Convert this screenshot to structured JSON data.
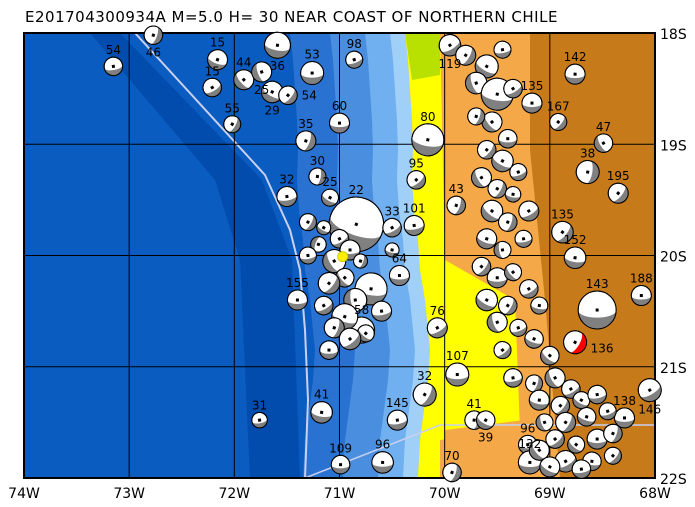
{
  "title": "E201704300934A M=5.0 H= 30 NEAR COAST OF NORTHERN CHILE",
  "map": {
    "lon_range": [
      -74,
      -68
    ],
    "lat_range": [
      -22,
      -18
    ],
    "lon_ticks": [
      "74W",
      "73W",
      "72W",
      "71W",
      "70W",
      "69W",
      "68W"
    ],
    "lat_ticks": [
      "18S",
      "19S",
      "20S",
      "21S",
      "22S"
    ],
    "colors": {
      "ocean_deep": "#0a5cc0",
      "ocean_trench": "#0048a8",
      "shelf": "#a0d0f8",
      "land": "#f5a848",
      "land_high": "#c77a1a",
      "coastal_yellow": "#ffff00",
      "mechanism_fill": "#808080",
      "main_event": "#ff0000",
      "epicenter": "#ffee00",
      "plate_boundary": "#c8d0f0"
    },
    "epicenter": {
      "lon": -70.97,
      "lat": -20.01
    }
  },
  "main_event": {
    "lon": -68.76,
    "lat": -20.78,
    "mag": 5.6,
    "strike": 30,
    "label": "136"
  },
  "events": [
    [
      -73.15,
      -18.3,
      5.3,
      80,
      "54"
    ],
    [
      -72.77,
      -18.02,
      5.3,
      20,
      "46"
    ],
    [
      -72.16,
      -18.24,
      5.4,
      110,
      "15"
    ],
    [
      -71.59,
      -18.11,
      5.8,
      100,
      "36"
    ],
    [
      -71.26,
      -18.36,
      5.6,
      90,
      "53"
    ],
    [
      -70.86,
      -18.24,
      5.2,
      70,
      "98"
    ],
    [
      -71.91,
      -18.42,
      5.4,
      140,
      "44"
    ],
    [
      -72.21,
      -18.49,
      5.3,
      60,
      "15"
    ],
    [
      -71.74,
      -18.35,
      5.4,
      160,
      "25"
    ],
    [
      -71.64,
      -18.53,
      5.5,
      120,
      "29"
    ],
    [
      -71.49,
      -18.56,
      5.3,
      40,
      "54"
    ],
    [
      -72.02,
      -18.82,
      5.2,
      30,
      "55"
    ],
    [
      -71.0,
      -18.81,
      5.4,
      90,
      "60"
    ],
    [
      -71.32,
      -18.97,
      5.4,
      20,
      "35"
    ],
    [
      -71.21,
      -19.29,
      5.2,
      10,
      "30"
    ],
    [
      -71.5,
      -19.47,
      5.4,
      80,
      "32"
    ],
    [
      -71.09,
      -19.48,
      5.2,
      120,
      "25"
    ],
    [
      -70.84,
      -19.72,
      7.7,
      110,
      "22"
    ],
    [
      -70.5,
      -19.75,
      5.3,
      60,
      "33"
    ],
    [
      -70.29,
      -19.73,
      5.4,
      80,
      "101"
    ],
    [
      -70.27,
      -19.32,
      5.3,
      50,
      "95"
    ],
    [
      -70.16,
      -18.96,
      6.2,
      100,
      "80"
    ],
    [
      -69.89,
      -19.55,
      5.3,
      20,
      "43"
    ],
    [
      -70.43,
      -20.18,
      5.4,
      90,
      "64"
    ],
    [
      -71.4,
      -20.4,
      5.4,
      90,
      "155"
    ],
    [
      -70.79,
      -20.67,
      5.8,
      120,
      "58"
    ],
    [
      -71.76,
      -21.48,
      5.1,
      80,
      "31"
    ],
    [
      -71.17,
      -21.41,
      5.5,
      100,
      "41"
    ],
    [
      -70.99,
      -21.88,
      5.3,
      90,
      "109"
    ],
    [
      -70.59,
      -21.86,
      5.5,
      90,
      "96"
    ],
    [
      -70.45,
      -21.48,
      5.4,
      80,
      "145"
    ],
    [
      -70.19,
      -21.25,
      5.6,
      30,
      "32"
    ],
    [
      -70.07,
      -20.65,
      5.4,
      60,
      "76"
    ],
    [
      -69.88,
      -21.07,
      5.6,
      90,
      "107"
    ],
    [
      -69.93,
      -21.95,
      5.3,
      20,
      "70"
    ],
    [
      -69.72,
      -21.48,
      5.3,
      10,
      "41"
    ],
    [
      -69.61,
      -21.48,
      5.3,
      120,
      "39"
    ],
    [
      -69.21,
      -21.7,
      5.3,
      90,
      "96"
    ],
    [
      -69.19,
      -21.86,
      5.6,
      90,
      "132"
    ],
    [
      -69.95,
      -18.11,
      5.5,
      60,
      "119"
    ],
    [
      -68.76,
      -18.37,
      5.4,
      90,
      "142"
    ],
    [
      -69.17,
      -18.63,
      5.4,
      90,
      "135"
    ],
    [
      -68.92,
      -18.8,
      5.2,
      40,
      "167"
    ],
    [
      -68.49,
      -18.99,
      5.3,
      150,
      "47"
    ],
    [
      -68.64,
      -19.25,
      5.6,
      10,
      "38"
    ],
    [
      -68.35,
      -19.44,
      5.4,
      40,
      "195"
    ],
    [
      -68.88,
      -19.79,
      5.5,
      40,
      "135"
    ],
    [
      -68.76,
      -20.02,
      5.5,
      100,
      "152"
    ],
    [
      -68.55,
      -20.49,
      6.6,
      90,
      "143"
    ],
    [
      -68.13,
      -20.36,
      5.4,
      90,
      "188"
    ],
    [
      -68.05,
      -21.21,
      5.6,
      60,
      "146"
    ],
    [
      -68.29,
      -21.46,
      5.4,
      90,
      "138"
    ],
    [
      -71.3,
      -19.7,
      5.2,
      30,
      ""
    ],
    [
      -71.15,
      -19.75,
      5.0,
      120,
      ""
    ],
    [
      -71.0,
      -19.85,
      5.3,
      60,
      ""
    ],
    [
      -71.2,
      -19.9,
      5.1,
      200,
      ""
    ],
    [
      -70.9,
      -19.95,
      5.4,
      90,
      ""
    ],
    [
      -71.05,
      -20.05,
      5.6,
      150,
      ""
    ],
    [
      -70.8,
      -20.05,
      5.0,
      20,
      ""
    ],
    [
      -71.3,
      -20.0,
      5.2,
      80,
      ""
    ],
    [
      -70.95,
      -20.2,
      5.3,
      140,
      ""
    ],
    [
      -71.1,
      -20.25,
      5.5,
      40,
      ""
    ],
    [
      -70.7,
      -20.3,
      6.2,
      100,
      ""
    ],
    [
      -70.85,
      -20.4,
      5.6,
      170,
      ""
    ],
    [
      -71.15,
      -20.45,
      5.3,
      60,
      ""
    ],
    [
      -70.95,
      -20.55,
      5.8,
      110,
      ""
    ],
    [
      -71.05,
      -20.65,
      5.4,
      20,
      ""
    ],
    [
      -70.75,
      -20.7,
      5.2,
      130,
      ""
    ],
    [
      -71.1,
      -20.85,
      5.3,
      90,
      ""
    ],
    [
      -70.9,
      -20.75,
      5.5,
      50,
      ""
    ],
    [
      -70.6,
      -20.5,
      5.4,
      80,
      ""
    ],
    [
      -70.5,
      -19.95,
      5.0,
      100,
      ""
    ],
    [
      -69.8,
      -18.2,
      5.4,
      30,
      ""
    ],
    [
      -69.6,
      -18.3,
      5.6,
      120,
      ""
    ],
    [
      -69.45,
      -18.15,
      5.2,
      80,
      ""
    ],
    [
      -69.7,
      -18.45,
      5.5,
      160,
      ""
    ],
    [
      -69.5,
      -18.55,
      6.2,
      100,
      ""
    ],
    [
      -69.35,
      -18.5,
      5.3,
      60,
      ""
    ],
    [
      -69.55,
      -18.8,
      5.4,
      140,
      ""
    ],
    [
      -69.7,
      -18.75,
      5.2,
      20,
      ""
    ],
    [
      -69.4,
      -18.95,
      5.3,
      90,
      ""
    ],
    [
      -69.6,
      -19.05,
      5.3,
      40,
      ""
    ],
    [
      -69.45,
      -19.15,
      5.5,
      120,
      ""
    ],
    [
      -69.3,
      -19.25,
      5.2,
      70,
      ""
    ],
    [
      -69.65,
      -19.3,
      5.4,
      150,
      ""
    ],
    [
      -69.5,
      -19.4,
      5.3,
      30,
      ""
    ],
    [
      -69.35,
      -19.45,
      5.1,
      100,
      ""
    ],
    [
      -69.2,
      -19.6,
      5.4,
      60,
      ""
    ],
    [
      -69.55,
      -19.6,
      5.5,
      130,
      ""
    ],
    [
      -69.4,
      -19.7,
      5.3,
      20,
      ""
    ],
    [
      -69.25,
      -19.85,
      5.2,
      80,
      ""
    ],
    [
      -69.6,
      -19.85,
      5.4,
      110,
      ""
    ],
    [
      -69.45,
      -19.95,
      5.2,
      170,
      ""
    ],
    [
      -69.65,
      -20.1,
      5.3,
      40,
      ""
    ],
    [
      -69.5,
      -20.2,
      5.4,
      90,
      ""
    ],
    [
      -69.35,
      -20.15,
      5.2,
      140,
      ""
    ],
    [
      -69.2,
      -20.3,
      5.3,
      60,
      ""
    ],
    [
      -69.6,
      -20.4,
      5.5,
      120,
      ""
    ],
    [
      -69.4,
      -20.45,
      5.3,
      30,
      ""
    ],
    [
      -69.1,
      -20.45,
      5.2,
      100,
      ""
    ],
    [
      -69.5,
      -20.6,
      5.4,
      160,
      ""
    ],
    [
      -69.3,
      -20.65,
      5.2,
      70,
      ""
    ],
    [
      -69.15,
      -20.75,
      5.3,
      110,
      ""
    ],
    [
      -69.45,
      -20.85,
      5.2,
      50,
      ""
    ],
    [
      -69.0,
      -20.9,
      5.3,
      130,
      ""
    ],
    [
      -69.35,
      -21.1,
      5.3,
      80,
      ""
    ],
    [
      -69.15,
      -21.15,
      5.2,
      20,
      ""
    ],
    [
      -68.95,
      -21.1,
      5.4,
      150,
      ""
    ],
    [
      -68.8,
      -21.2,
      5.3,
      60,
      ""
    ],
    [
      -69.1,
      -21.3,
      5.4,
      100,
      ""
    ],
    [
      -68.9,
      -21.35,
      5.3,
      40,
      ""
    ],
    [
      -68.7,
      -21.3,
      5.2,
      120,
      ""
    ],
    [
      -68.55,
      -21.25,
      5.3,
      80,
      ""
    ],
    [
      -69.05,
      -21.5,
      5.2,
      160,
      ""
    ],
    [
      -68.85,
      -21.5,
      5.4,
      30,
      ""
    ],
    [
      -68.65,
      -21.45,
      5.3,
      110,
      ""
    ],
    [
      -68.45,
      -21.4,
      5.2,
      70,
      ""
    ],
    [
      -68.95,
      -21.65,
      5.3,
      50,
      ""
    ],
    [
      -68.75,
      -21.7,
      5.2,
      130,
      ""
    ],
    [
      -68.55,
      -21.65,
      5.4,
      90,
      ""
    ],
    [
      -68.4,
      -21.6,
      5.3,
      20,
      ""
    ],
    [
      -69.1,
      -21.75,
      5.4,
      140,
      ""
    ],
    [
      -68.85,
      -21.85,
      5.5,
      60,
      ""
    ],
    [
      -68.6,
      -21.85,
      5.3,
      100,
      ""
    ],
    [
      -68.4,
      -21.8,
      5.2,
      40,
      ""
    ],
    [
      -69.0,
      -21.9,
      5.4,
      120,
      ""
    ],
    [
      -68.7,
      -21.92,
      5.3,
      80,
      ""
    ]
  ]
}
